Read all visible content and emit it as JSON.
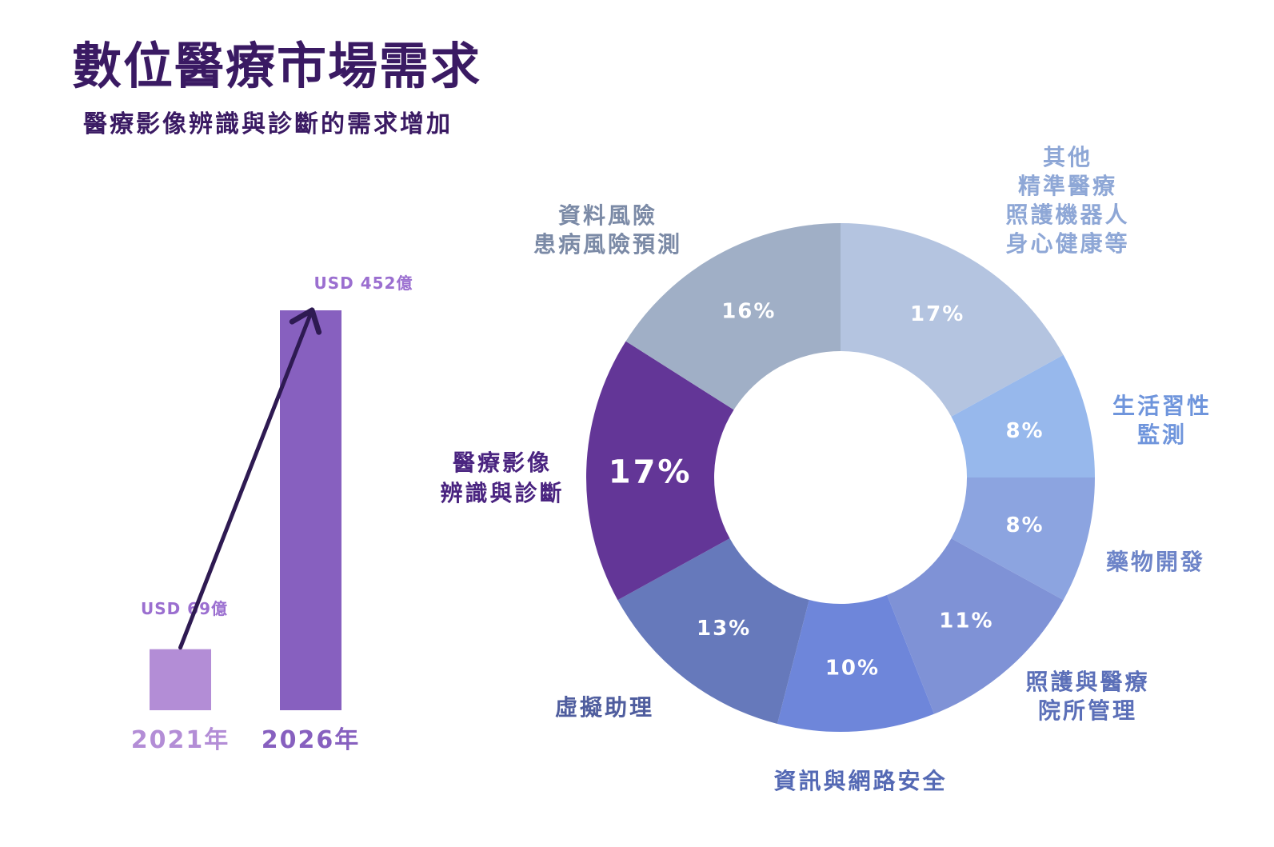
{
  "header": {
    "title": "數位醫療市場需求",
    "subtitle": "醫療影像辨識與診斷的需求增加"
  },
  "chart_data": [
    {
      "type": "bar",
      "categories": [
        "2021年",
        "2026年"
      ],
      "values": [
        69,
        452
      ],
      "value_labels": [
        "USD 69億",
        "USD 452億"
      ],
      "unit": "億 USD",
      "colors": [
        "#b38dd6",
        "#8760bf"
      ],
      "label_color": "#9b6fd0",
      "arrow_color": "#2e1a52"
    },
    {
      "type": "pie",
      "variant": "donut",
      "slices": [
        {
          "label_lines": [
            "其他",
            "精準醫療",
            "照護機器人",
            "身心健康等"
          ],
          "value": 17,
          "value_label": "17%",
          "color": "#b4c4e0",
          "label_color": "#8ea7d6"
        },
        {
          "label_lines": [
            "生活習性",
            "監測"
          ],
          "value": 8,
          "value_label": "8%",
          "color": "#97b8ec",
          "label_color": "#6f95dc"
        },
        {
          "label_lines": [
            "藥物開發"
          ],
          "value": 8,
          "value_label": "8%",
          "color": "#8ca4e0",
          "label_color": "#6d84c8"
        },
        {
          "label_lines": [
            "照護與醫療",
            "院所管理"
          ],
          "value": 11,
          "value_label": "11%",
          "color": "#7f92d6",
          "label_color": "#5b6fb8"
        },
        {
          "label_lines": [
            "資訊與網路安全"
          ],
          "value": 10,
          "value_label": "10%",
          "color": "#6e86da",
          "label_color": "#5469b4"
        },
        {
          "label_lines": [
            "虛擬助理"
          ],
          "value": 13,
          "value_label": "13%",
          "color": "#6679bb",
          "label_color": "#4f5d9e"
        },
        {
          "label_lines": [
            "醫療影像",
            "辨識與診斷"
          ],
          "value": 17,
          "value_label": "17%",
          "color": "#633697",
          "label_color": "#4a2480",
          "highlight": true
        },
        {
          "label_lines": [
            "資料風險",
            "患病風險預測"
          ],
          "value": 16,
          "value_label": "16%",
          "color": "#a0afc6",
          "label_color": "#7b8aa6"
        }
      ]
    }
  ]
}
